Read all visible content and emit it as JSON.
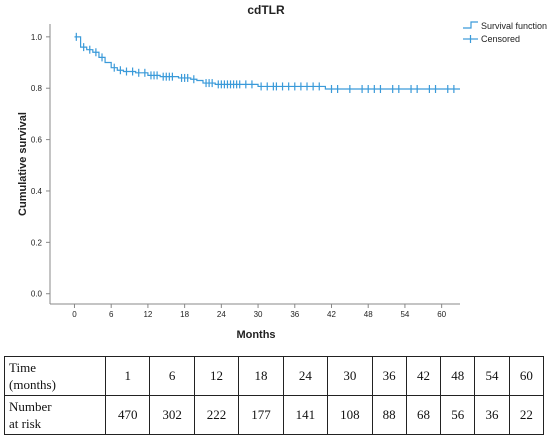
{
  "chart_data": {
    "type": "line",
    "title": "cdTLR",
    "xlabel": "Months",
    "ylabel": "Cumulative survival",
    "xlim": [
      -4,
      63
    ],
    "ylim": [
      -0.04,
      1.05
    ],
    "x_ticks": [
      "0",
      "6",
      "12",
      "18",
      "24",
      "30",
      "36",
      "42",
      "48",
      "54",
      "60"
    ],
    "y_ticks": [
      "0.0",
      "0.2",
      "0.4",
      "0.6",
      "0.8",
      "1.0"
    ],
    "grid": false,
    "legend_position": "top-right",
    "legend": [
      "Survival function",
      "Censored"
    ],
    "color": "#3a9ad9",
    "series": [
      {
        "name": "Survival function",
        "x": [
          0,
          1,
          2,
          3,
          4,
          5,
          6,
          7,
          8,
          10,
          12,
          14,
          17,
          19,
          20,
          21,
          23,
          30,
          41
        ],
        "y": [
          1.0,
          0.96,
          0.95,
          0.94,
          0.92,
          0.9,
          0.88,
          0.87,
          0.865,
          0.86,
          0.85,
          0.845,
          0.84,
          0.835,
          0.83,
          0.82,
          0.815,
          0.807,
          0.797
        ]
      }
    ],
    "censored": [
      {
        "x": 0.3,
        "y": 1.0
      },
      {
        "x": 1.5,
        "y": 0.96
      },
      {
        "x": 2.5,
        "y": 0.95
      },
      {
        "x": 3.5,
        "y": 0.94
      },
      {
        "x": 4.5,
        "y": 0.92
      },
      {
        "x": 6.5,
        "y": 0.88
      },
      {
        "x": 7.5,
        "y": 0.87
      },
      {
        "x": 8.5,
        "y": 0.865
      },
      {
        "x": 9.5,
        "y": 0.865
      },
      {
        "x": 10.5,
        "y": 0.86
      },
      {
        "x": 11.5,
        "y": 0.86
      },
      {
        "x": 12.5,
        "y": 0.85
      },
      {
        "x": 13,
        "y": 0.85
      },
      {
        "x": 13.5,
        "y": 0.85
      },
      {
        "x": 14.5,
        "y": 0.845
      },
      {
        "x": 15,
        "y": 0.845
      },
      {
        "x": 15.5,
        "y": 0.845
      },
      {
        "x": 16,
        "y": 0.845
      },
      {
        "x": 17.5,
        "y": 0.84
      },
      {
        "x": 18,
        "y": 0.84
      },
      {
        "x": 18.5,
        "y": 0.84
      },
      {
        "x": 19.5,
        "y": 0.835
      },
      {
        "x": 21.5,
        "y": 0.82
      },
      {
        "x": 22,
        "y": 0.82
      },
      {
        "x": 22.5,
        "y": 0.82
      },
      {
        "x": 23.5,
        "y": 0.815
      },
      {
        "x": 24,
        "y": 0.815
      },
      {
        "x": 24.5,
        "y": 0.815
      },
      {
        "x": 25,
        "y": 0.815
      },
      {
        "x": 25.5,
        "y": 0.815
      },
      {
        "x": 26,
        "y": 0.815
      },
      {
        "x": 26.5,
        "y": 0.815
      },
      {
        "x": 27,
        "y": 0.815
      },
      {
        "x": 28,
        "y": 0.815
      },
      {
        "x": 29,
        "y": 0.815
      },
      {
        "x": 30.5,
        "y": 0.807
      },
      {
        "x": 31.5,
        "y": 0.807
      },
      {
        "x": 32.5,
        "y": 0.807
      },
      {
        "x": 33,
        "y": 0.807
      },
      {
        "x": 34,
        "y": 0.807
      },
      {
        "x": 35,
        "y": 0.807
      },
      {
        "x": 36,
        "y": 0.807
      },
      {
        "x": 37,
        "y": 0.807
      },
      {
        "x": 38,
        "y": 0.807
      },
      {
        "x": 39,
        "y": 0.807
      },
      {
        "x": 40,
        "y": 0.807
      },
      {
        "x": 42,
        "y": 0.797
      },
      {
        "x": 43,
        "y": 0.797
      },
      {
        "x": 45,
        "y": 0.797
      },
      {
        "x": 47,
        "y": 0.797
      },
      {
        "x": 48,
        "y": 0.797
      },
      {
        "x": 49,
        "y": 0.797
      },
      {
        "x": 50,
        "y": 0.797
      },
      {
        "x": 52,
        "y": 0.797
      },
      {
        "x": 53,
        "y": 0.797
      },
      {
        "x": 55,
        "y": 0.797
      },
      {
        "x": 56,
        "y": 0.797
      },
      {
        "x": 58,
        "y": 0.797
      },
      {
        "x": 59,
        "y": 0.797
      },
      {
        "x": 61,
        "y": 0.797
      },
      {
        "x": 62,
        "y": 0.797
      }
    ]
  },
  "risk_table": {
    "row1_label_line1": "Time",
    "row1_label_line2": "(months)",
    "times": [
      "1",
      "6",
      "12",
      "18",
      "24",
      "30",
      "36",
      "42",
      "48",
      "54",
      "60"
    ],
    "row2_label_line1": "Number",
    "row2_label_line2": "at risk",
    "numbers": [
      "470",
      "302",
      "222",
      "177",
      "141",
      "108",
      "88",
      "68",
      "56",
      "36",
      "22"
    ]
  }
}
